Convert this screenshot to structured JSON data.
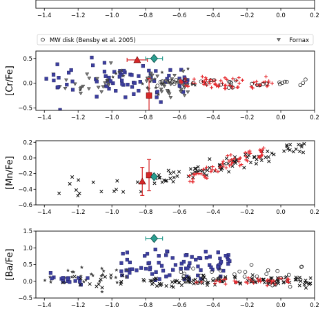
{
  "chart_data": [
    {
      "type": "scatter",
      "panel": "top-cropped",
      "ylabel": "",
      "xlim": [
        -1.45,
        0.2
      ],
      "xticks": [
        "−1.4",
        "−1.2",
        "−1.0",
        "−0.8",
        "−0.6",
        "−0.4",
        "−0.2",
        "0.0",
        "0.2"
      ],
      "series_visible": [
        {
          "name": "",
          "color": "#3b3b9a",
          "marker": "square",
          "x_range": [
            -0.82,
            -0.2
          ],
          "y_approx": 0.05
        },
        {
          "name": "",
          "color": "#e0262b",
          "marker": "plus",
          "x_range": [
            -0.45,
            -0.05
          ],
          "y_approx": 0.05
        },
        {
          "name": "",
          "color": "#333333",
          "marker": "circle",
          "x_range": [
            -1.1,
            0.1
          ],
          "y_approx": 0.0
        }
      ]
    },
    {
      "type": "scatter",
      "panel": "Cr",
      "ylabel": "[Cr/Fe]",
      "xlim": [
        -1.45,
        0.2
      ],
      "ylim": [
        -0.55,
        0.65
      ],
      "yticks": [
        "−0.5",
        "0.0",
        "0.5"
      ],
      "xticks": [
        "−1.4",
        "−1.2",
        "−1.0",
        "−0.8",
        "−0.6",
        "−0.4",
        "−0.2",
        "0.0",
        "0.2"
      ],
      "legend": {
        "placement": "top",
        "entries": [
          "MW disk (Bensby et al. 2005)",
          "Fornax"
        ]
      },
      "highlight_points": [
        {
          "x": -0.85,
          "y": 0.47,
          "color": "#d62728",
          "marker": "triangle",
          "xerr": 0.06
        },
        {
          "x": -0.75,
          "y": 0.5,
          "color": "#2a9d8f",
          "marker": "diamond",
          "xerr": 0.05
        },
        {
          "x": -0.78,
          "y": -0.25,
          "color": "#d62728",
          "marker": "square",
          "yerr": 0.35
        }
      ]
    },
    {
      "type": "scatter",
      "panel": "Mn",
      "ylabel": "[Mn/Fe]",
      "xlim": [
        -1.45,
        0.2
      ],
      "ylim": [
        -0.6,
        0.22
      ],
      "yticks": [
        "−0.6",
        "−0.4",
        "−0.2",
        "0.0",
        "0.2"
      ],
      "xticks": [
        "−1.4",
        "−1.2",
        "−1.0",
        "−0.8",
        "−0.6",
        "−0.4",
        "−0.2",
        "0.0",
        "0.2"
      ],
      "highlight_points": [
        {
          "x": -0.78,
          "y": -0.22,
          "color": "#d62728",
          "marker": "square",
          "yerr": 0.2
        },
        {
          "x": -0.82,
          "y": -0.3,
          "color": "#d62728",
          "marker": "triangle",
          "yerr": 0.18
        },
        {
          "x": -0.75,
          "y": -0.24,
          "color": "#2a9d8f",
          "marker": "diamond"
        }
      ]
    },
    {
      "type": "scatter",
      "panel": "Ba",
      "ylabel": "[Ba/Fe]",
      "xlim": [
        -1.45,
        0.2
      ],
      "ylim": [
        -0.5,
        1.5
      ],
      "yticks": [
        "−0.5",
        "0.0",
        "0.5",
        "1.0",
        "1.5"
      ],
      "xticks": [
        "−1.4",
        "−1.2",
        "−1.0",
        "−0.8",
        "−0.6",
        "−0.4",
        "−0.2",
        "0.0",
        "0.2"
      ],
      "highlight_points": [
        {
          "x": -0.75,
          "y": 1.28,
          "color": "#2a9d8f",
          "marker": "diamond",
          "xerr": 0.05
        }
      ]
    }
  ],
  "colors": {
    "mw_disk": "#222222",
    "fornax": "#555555",
    "blue_sq": "#3d3f9f",
    "red_plus": "#e62a2f",
    "black_x": "#111111",
    "accent_red": "#d62728",
    "accent_teal": "#2a9d8f"
  }
}
